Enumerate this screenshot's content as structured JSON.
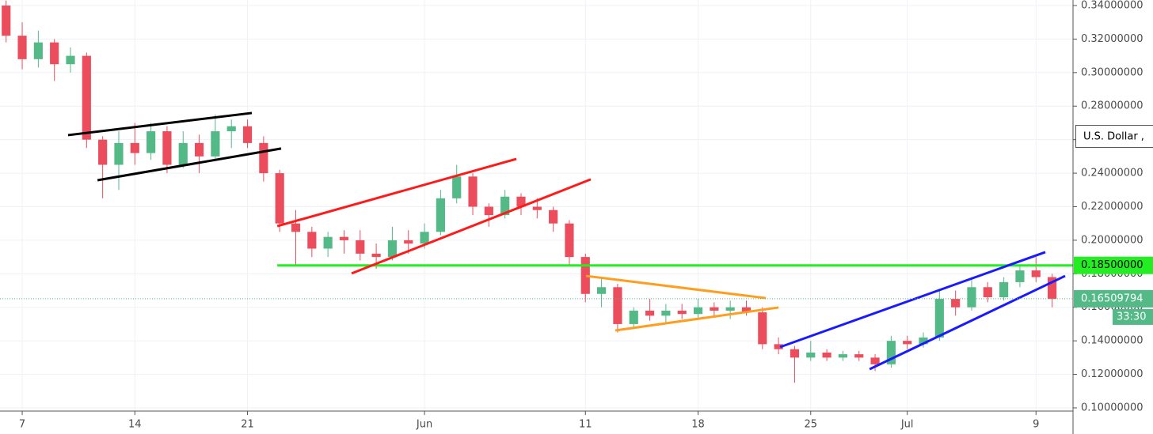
{
  "chart_data": {
    "type": "candlestick",
    "x": [
      6,
      7,
      8,
      9,
      10,
      11,
      12,
      13,
      14,
      15,
      16,
      17,
      18,
      19,
      20,
      21,
      22,
      23,
      24,
      25,
      26,
      27,
      28,
      29,
      30,
      31,
      32,
      33,
      34,
      35,
      36,
      37,
      38,
      39,
      40,
      41,
      42,
      43,
      44,
      45,
      46,
      47,
      48,
      49,
      50,
      51,
      52,
      53,
      54,
      55,
      56,
      57,
      58,
      59,
      60,
      61,
      62,
      63,
      64,
      65,
      66,
      67,
      68,
      69,
      70,
      71
    ],
    "open": [
      0.34,
      0.322,
      0.308,
      0.318,
      0.305,
      0.31,
      0.26,
      0.245,
      0.258,
      0.252,
      0.265,
      0.245,
      0.258,
      0.25,
      0.265,
      0.268,
      0.258,
      0.24,
      0.21,
      0.205,
      0.195,
      0.202,
      0.2,
      0.192,
      0.19,
      0.2,
      0.198,
      0.205,
      0.225,
      0.238,
      0.22,
      0.215,
      0.226,
      0.22,
      0.218,
      0.21,
      0.19,
      0.168,
      0.172,
      0.15,
      0.158,
      0.155,
      0.158,
      0.156,
      0.16,
      0.158,
      0.16,
      0.157,
      0.138,
      0.135,
      0.13,
      0.133,
      0.13,
      0.132,
      0.13,
      0.126,
      0.14,
      0.138,
      0.142,
      0.165,
      0.16,
      0.172,
      0.166,
      0.175,
      0.182,
      0.178
    ],
    "high": [
      0.343,
      0.33,
      0.325,
      0.32,
      0.315,
      0.312,
      0.262,
      0.265,
      0.27,
      0.27,
      0.268,
      0.265,
      0.263,
      0.275,
      0.272,
      0.272,
      0.262,
      0.242,
      0.218,
      0.208,
      0.205,
      0.206,
      0.206,
      0.198,
      0.208,
      0.206,
      0.21,
      0.23,
      0.245,
      0.24,
      0.222,
      0.23,
      0.228,
      0.225,
      0.22,
      0.212,
      0.192,
      0.178,
      0.174,
      0.16,
      0.165,
      0.162,
      0.162,
      0.165,
      0.163,
      0.164,
      0.164,
      0.16,
      0.142,
      0.137,
      0.14,
      0.135,
      0.134,
      0.134,
      0.132,
      0.143,
      0.143,
      0.145,
      0.17,
      0.17,
      0.178,
      0.175,
      0.178,
      0.185,
      0.19,
      0.18
    ],
    "low": [
      0.318,
      0.302,
      0.303,
      0.295,
      0.3,
      0.255,
      0.225,
      0.23,
      0.245,
      0.248,
      0.24,
      0.243,
      0.24,
      0.248,
      0.255,
      0.255,
      0.235,
      0.205,
      0.185,
      0.19,
      0.19,
      0.192,
      0.188,
      0.183,
      0.188,
      0.192,
      0.195,
      0.203,
      0.222,
      0.215,
      0.208,
      0.213,
      0.215,
      0.213,
      0.205,
      0.185,
      0.163,
      0.16,
      0.145,
      0.147,
      0.152,
      0.15,
      0.153,
      0.153,
      0.155,
      0.153,
      0.155,
      0.135,
      0.132,
      0.115,
      0.128,
      0.128,
      0.128,
      0.128,
      0.122,
      0.124,
      0.135,
      0.136,
      0.14,
      0.155,
      0.158,
      0.163,
      0.164,
      0.172,
      0.175,
      0.16
    ],
    "close": [
      0.322,
      0.308,
      0.318,
      0.305,
      0.31,
      0.26,
      0.245,
      0.258,
      0.252,
      0.265,
      0.245,
      0.258,
      0.25,
      0.265,
      0.268,
      0.258,
      0.24,
      0.21,
      0.205,
      0.195,
      0.202,
      0.2,
      0.192,
      0.19,
      0.2,
      0.198,
      0.205,
      0.225,
      0.238,
      0.22,
      0.215,
      0.226,
      0.22,
      0.218,
      0.21,
      0.19,
      0.168,
      0.172,
      0.15,
      0.158,
      0.155,
      0.158,
      0.156,
      0.16,
      0.158,
      0.16,
      0.157,
      0.138,
      0.135,
      0.13,
      0.133,
      0.13,
      0.132,
      0.13,
      0.126,
      0.14,
      0.138,
      0.142,
      0.165,
      0.16,
      0.172,
      0.166,
      0.175,
      0.182,
      0.178,
      0.165
    ],
    "up_color": "#53b987",
    "down_color": "#eb4d5c",
    "xlim": [
      5.62,
      72.3
    ],
    "ylim": [
      0.0981,
      0.3433
    ],
    "xticks": [
      7,
      14,
      21,
      {
        "value": 32,
        "label": "Jun"
      },
      11,
      18,
      25,
      {
        "value": 62,
        "label": "Jul"
      },
      9
    ],
    "yticks": [
      {
        "value": 0.1,
        "label": "0.10000000"
      },
      {
        "value": 0.12,
        "label": "0.12000000"
      },
      {
        "value": 0.14,
        "label": "0.14000000"
      },
      {
        "value": 0.16,
        "label": "0.16000000"
      },
      {
        "value": 0.18,
        "label": "0.18000000"
      },
      {
        "value": 0.2,
        "label": "0.20000000"
      },
      {
        "value": 0.22,
        "label": "0.22000000"
      },
      {
        "value": 0.24,
        "label": "0.24000000"
      },
      {
        "value": 0.26,
        "label": "0.26000000"
      },
      {
        "value": 0.28,
        "label": "0.28000000"
      },
      {
        "value": 0.3,
        "label": "0.30000000"
      },
      {
        "value": 0.32,
        "label": "0.32000000"
      },
      {
        "value": 0.34,
        "label": "0.34000000"
      }
    ],
    "grid": true,
    "lines": [
      {
        "color": "#000000",
        "x": [
          9.85,
          21.27
        ],
        "y": [
          0.2627,
          0.2759
        ]
      },
      {
        "color": "#000000",
        "x": [
          11.68,
          23.09
        ],
        "y": [
          0.2358,
          0.2547
        ]
      },
      {
        "color": "#ff1a1a",
        "x": [
          22.85,
          37.71
        ],
        "y": [
          0.2084,
          0.2485
        ]
      },
      {
        "color": "#ff1a1a",
        "x": [
          27.47,
          42.33
        ],
        "y": [
          0.1802,
          0.2363
        ]
      },
      {
        "color": "#ff9d1f",
        "x": [
          42.04,
          53.21
        ],
        "y": [
          0.1787,
          0.1655
        ]
      },
      {
        "color": "#ff9d1f",
        "x": [
          43.86,
          54.0
        ],
        "y": [
          0.1462,
          0.1599
        ]
      },
      {
        "color": "#1a1aff",
        "x": [
          54.1,
          70.58
        ],
        "y": [
          0.1363,
          0.1929
        ]
      },
      {
        "color": "#1a1aff",
        "x": [
          59.66,
          71.81
        ],
        "y": [
          0.1231,
          0.1787
        ]
      }
    ],
    "level": {
      "value": 0.185,
      "label": "0.18500000",
      "start": 22.85,
      "color": "#22ee22"
    },
    "last_price": 0.16509794,
    "timer": "33:30",
    "currency": "U.S. Dollar ,"
  }
}
